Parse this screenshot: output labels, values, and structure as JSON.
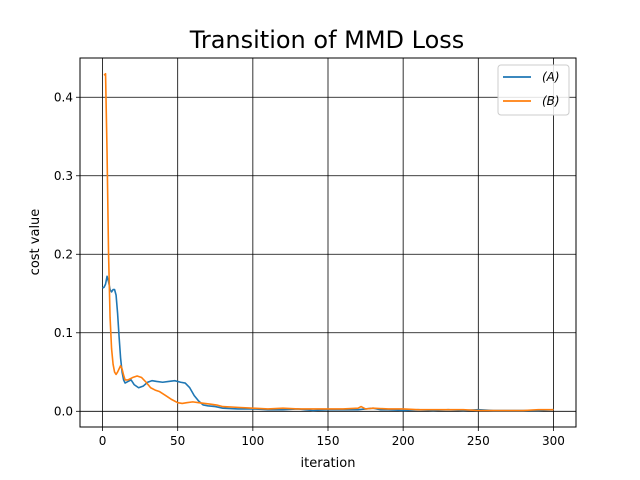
{
  "chart_data": {
    "type": "line",
    "title": "Transition of MMD Loss",
    "xlabel": "iteration",
    "ylabel": "cost value",
    "xlim": [
      -15,
      315
    ],
    "ylim": [
      -0.02,
      0.45
    ],
    "xticks": [
      0,
      50,
      100,
      150,
      200,
      250,
      300
    ],
    "yticks": [
      0.0,
      0.1,
      0.2,
      0.3,
      0.4
    ],
    "grid": true,
    "legend": "top-right",
    "series": [
      {
        "name": "(A)",
        "color": "#1f77b4",
        "points": [
          [
            0,
            0.157
          ],
          [
            1,
            0.158
          ],
          [
            2,
            0.162
          ],
          [
            3,
            0.172
          ],
          [
            4,
            0.165
          ],
          [
            5,
            0.155
          ],
          [
            6,
            0.152
          ],
          [
            7,
            0.155
          ],
          [
            8,
            0.155
          ],
          [
            9,
            0.148
          ],
          [
            10,
            0.125
          ],
          [
            11,
            0.095
          ],
          [
            12,
            0.068
          ],
          [
            13,
            0.05
          ],
          [
            14,
            0.04
          ],
          [
            15,
            0.036
          ],
          [
            17,
            0.038
          ],
          [
            19,
            0.04
          ],
          [
            21,
            0.034
          ],
          [
            24,
            0.03
          ],
          [
            27,
            0.032
          ],
          [
            30,
            0.037
          ],
          [
            33,
            0.039
          ],
          [
            36,
            0.038
          ],
          [
            40,
            0.037
          ],
          [
            44,
            0.038
          ],
          [
            48,
            0.039
          ],
          [
            52,
            0.037
          ],
          [
            55,
            0.036
          ],
          [
            58,
            0.03
          ],
          [
            61,
            0.02
          ],
          [
            64,
            0.013
          ],
          [
            67,
            0.008
          ],
          [
            70,
            0.007
          ],
          [
            75,
            0.006
          ],
          [
            80,
            0.004
          ],
          [
            90,
            0.003
          ],
          [
            100,
            0.003
          ],
          [
            110,
            0.002
          ],
          [
            120,
            0.002
          ],
          [
            130,
            0.003
          ],
          [
            140,
            0.001
          ],
          [
            150,
            0.002
          ],
          [
            160,
            0.002
          ],
          [
            170,
            0.002
          ],
          [
            175,
            0.003
          ],
          [
            180,
            0.004
          ],
          [
            185,
            0.002
          ],
          [
            190,
            0.002
          ],
          [
            200,
            0.001
          ],
          [
            210,
            0.002
          ],
          [
            220,
            0.001
          ],
          [
            230,
            0.002
          ],
          [
            240,
            0.001
          ],
          [
            250,
            0.002
          ],
          [
            260,
            0.001
          ],
          [
            270,
            0.001
          ],
          [
            280,
            0.001
          ],
          [
            290,
            0.001
          ],
          [
            300,
            0.002
          ]
        ]
      },
      {
        "name": "(B)",
        "color": "#ff7f0e",
        "points": [
          [
            1,
            0.428
          ],
          [
            2,
            0.43
          ],
          [
            3,
            0.33
          ],
          [
            4,
            0.2
          ],
          [
            5,
            0.12
          ],
          [
            6,
            0.08
          ],
          [
            7,
            0.06
          ],
          [
            8,
            0.05
          ],
          [
            9,
            0.047
          ],
          [
            10,
            0.05
          ],
          [
            11,
            0.054
          ],
          [
            12,
            0.058
          ],
          [
            13,
            0.054
          ],
          [
            14,
            0.046
          ],
          [
            15,
            0.04
          ],
          [
            17,
            0.04
          ],
          [
            20,
            0.043
          ],
          [
            23,
            0.045
          ],
          [
            26,
            0.043
          ],
          [
            29,
            0.037
          ],
          [
            32,
            0.03
          ],
          [
            35,
            0.027
          ],
          [
            38,
            0.025
          ],
          [
            42,
            0.02
          ],
          [
            46,
            0.015
          ],
          [
            50,
            0.011
          ],
          [
            53,
            0.01
          ],
          [
            56,
            0.011
          ],
          [
            60,
            0.012
          ],
          [
            64,
            0.011
          ],
          [
            68,
            0.01
          ],
          [
            72,
            0.009
          ],
          [
            76,
            0.008
          ],
          [
            80,
            0.006
          ],
          [
            90,
            0.005
          ],
          [
            100,
            0.004
          ],
          [
            110,
            0.003
          ],
          [
            120,
            0.004
          ],
          [
            130,
            0.003
          ],
          [
            140,
            0.003
          ],
          [
            150,
            0.003
          ],
          [
            160,
            0.003
          ],
          [
            170,
            0.004
          ],
          [
            172,
            0.006
          ],
          [
            175,
            0.003
          ],
          [
            180,
            0.004
          ],
          [
            190,
            0.003
          ],
          [
            200,
            0.003
          ],
          [
            210,
            0.002
          ],
          [
            220,
            0.002
          ],
          [
            230,
            0.002
          ],
          [
            240,
            0.002
          ],
          [
            250,
            0.001
          ],
          [
            260,
            0.001
          ],
          [
            270,
            0.001
          ],
          [
            280,
            0.001
          ],
          [
            290,
            0.002
          ],
          [
            300,
            0.002
          ]
        ]
      }
    ]
  }
}
